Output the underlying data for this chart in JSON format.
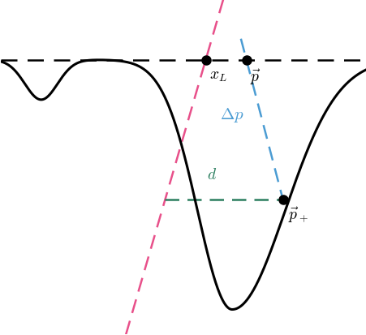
{
  "fig_width": 4.52,
  "fig_height": 4.14,
  "dpi": 100,
  "bg_color": "#ffffff",
  "curve_color": "#000000",
  "curve_lw": 2.2,
  "hline_color": "#000000",
  "hline_lw": 1.8,
  "hline_dash": [
    8,
    5
  ],
  "pink_line_color": "#e8508a",
  "blue_line_color": "#4b9cd3",
  "teal_line_color": "#2a7d5e",
  "dashed_lw": 1.8,
  "dashed_style": [
    7,
    4
  ],
  "dot_size": 8,
  "dot_color": "#000000",
  "xlim": [
    -4.5,
    4.5
  ],
  "ylim": [
    -5.5,
    1.2
  ],
  "hline_y": 0.0,
  "xL_x": 0.55,
  "xL_y": 0.0,
  "p_x": 1.55,
  "p_y": 0.0,
  "pplus_x": 2.45,
  "pplus_y": -2.8,
  "label_fontsize": 14,
  "label_xL": "$x_L$",
  "label_p": "$\\vec{p}$",
  "label_pplus": "$\\vec{p}_+$",
  "label_deltap": "$\\Delta p$",
  "label_d": "$d$"
}
